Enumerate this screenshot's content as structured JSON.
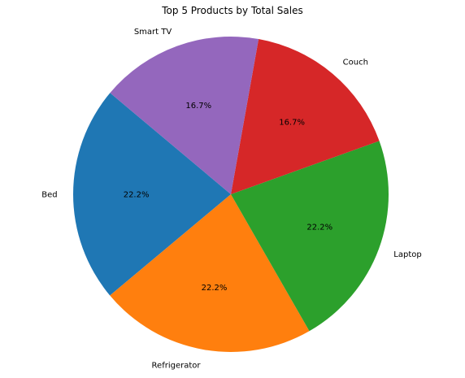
{
  "chart_data": {
    "type": "pie",
    "title": "Top 5 Products by Total Sales",
    "categories": [
      "Bed",
      "Refrigerator",
      "Laptop",
      "Couch",
      "Smart TV"
    ],
    "values": [
      22.2,
      22.2,
      22.2,
      16.7,
      16.7
    ],
    "value_labels": [
      "22.2%",
      "22.2%",
      "22.2%",
      "16.7%",
      "16.7%"
    ],
    "colors": [
      "#1f77b4",
      "#ff7f0e",
      "#2ca02c",
      "#d62728",
      "#9467bd"
    ],
    "start_angle_deg": 140,
    "direction": "counterclockwise",
    "legend": "none"
  }
}
